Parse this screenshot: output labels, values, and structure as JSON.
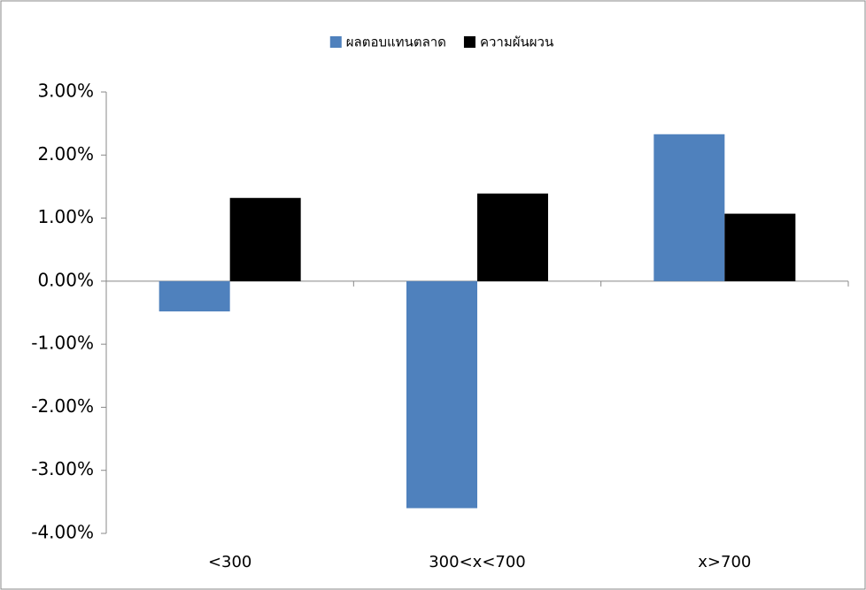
{
  "chart_data": {
    "type": "bar",
    "categories": [
      "<300",
      "300<x<700",
      "x>700"
    ],
    "series": [
      {
        "name": "ผลตอบแทนตลาด",
        "color": "#4f81bd",
        "values": [
          -0.48,
          -3.6,
          2.33
        ]
      },
      {
        "name": "ความผันผวน",
        "color": "#000000",
        "values": [
          1.32,
          1.39,
          1.07
        ]
      }
    ],
    "ylim": [
      -4,
      3
    ],
    "yticks": [
      {
        "value": -4,
        "label": "-4.00%"
      },
      {
        "value": -3,
        "label": "-3.00%"
      },
      {
        "value": -2,
        "label": "-2.00%"
      },
      {
        "value": -1,
        "label": "-1.00%"
      },
      {
        "value": 0,
        "label": "0.00%"
      },
      {
        "value": 1,
        "label": "1.00%"
      },
      {
        "value": 2,
        "label": "2.00%"
      },
      {
        "value": 3,
        "label": "3.00%"
      }
    ],
    "grid": false,
    "legend": "top"
  }
}
